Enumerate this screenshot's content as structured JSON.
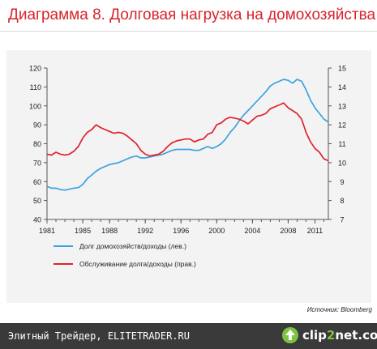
{
  "title": "Диаграмма 8. Долговая нагрузка на домохозяйства",
  "source": "Источник: Bloomberg",
  "footer": {
    "site_text": "Элитный Трейдер, ELITETRADER.RU",
    "logo_prefix": "clip",
    "logo_digit": "2",
    "logo_suffix": "net.com"
  },
  "colors": {
    "title": "#d8232a",
    "series_left": "#3ba3e0",
    "series_right": "#e0222c"
  },
  "chart_data": {
    "type": "line",
    "title": "",
    "x_ticks": [
      "1981",
      "1985",
      "1988",
      "1992",
      "1996",
      "2000",
      "2004",
      "2008",
      "2011"
    ],
    "x_range": [
      1981,
      2012.5
    ],
    "y_left": {
      "range": [
        40,
        120
      ],
      "ticks": [
        "40",
        "50",
        "60",
        "70",
        "80",
        "90",
        "100",
        "110",
        "120"
      ]
    },
    "y_right": {
      "range": [
        7,
        15
      ],
      "ticks": [
        "7",
        "8",
        "9",
        "10",
        "11",
        "12",
        "13",
        "14",
        "15"
      ]
    },
    "grid": false,
    "legend_position": "bottom",
    "series": [
      {
        "name": "Долг домохозяйств/доходы (лев.)",
        "axis": "left",
        "color": "#3ba3e0",
        "points": [
          [
            1981.0,
            57.5
          ],
          [
            1981.5,
            56.5
          ],
          [
            1982.0,
            56.5
          ],
          [
            1982.5,
            55.8
          ],
          [
            1983.0,
            55.5
          ],
          [
            1983.5,
            56.0
          ],
          [
            1984.0,
            56.5
          ],
          [
            1984.5,
            56.8
          ],
          [
            1985.0,
            58.5
          ],
          [
            1985.5,
            61.5
          ],
          [
            1986.0,
            63.5
          ],
          [
            1986.5,
            65.5
          ],
          [
            1987.0,
            67.0
          ],
          [
            1987.5,
            68.0
          ],
          [
            1988.0,
            69.0
          ],
          [
            1988.5,
            69.5
          ],
          [
            1989.0,
            70.0
          ],
          [
            1989.5,
            71.0
          ],
          [
            1990.0,
            72.0
          ],
          [
            1990.5,
            73.0
          ],
          [
            1991.0,
            73.5
          ],
          [
            1991.5,
            72.5
          ],
          [
            1992.0,
            72.5
          ],
          [
            1992.5,
            73.0
          ],
          [
            1993.0,
            73.5
          ],
          [
            1993.5,
            74.0
          ],
          [
            1994.0,
            74.5
          ],
          [
            1994.5,
            75.5
          ],
          [
            1995.0,
            76.5
          ],
          [
            1995.5,
            77.0
          ],
          [
            1996.0,
            77.0
          ],
          [
            1996.5,
            77.0
          ],
          [
            1997.0,
            77.0
          ],
          [
            1997.5,
            76.5
          ],
          [
            1998.0,
            76.5
          ],
          [
            1998.5,
            77.5
          ],
          [
            1999.0,
            78.5
          ],
          [
            1999.5,
            77.5
          ],
          [
            2000.0,
            78.5
          ],
          [
            2000.5,
            80.0
          ],
          [
            2001.0,
            82.5
          ],
          [
            2001.5,
            86.0
          ],
          [
            2002.0,
            88.5
          ],
          [
            2002.5,
            92.0
          ],
          [
            2003.0,
            95.0
          ],
          [
            2003.5,
            97.5
          ],
          [
            2004.0,
            100.0
          ],
          [
            2004.5,
            102.5
          ],
          [
            2005.0,
            105.0
          ],
          [
            2005.5,
            107.5
          ],
          [
            2006.0,
            110.5
          ],
          [
            2006.5,
            112.0
          ],
          [
            2007.0,
            113.0
          ],
          [
            2007.5,
            114.0
          ],
          [
            2008.0,
            113.5
          ],
          [
            2008.5,
            112.0
          ],
          [
            2009.0,
            114.0
          ],
          [
            2009.5,
            113.0
          ],
          [
            2010.0,
            108.5
          ],
          [
            2010.5,
            103.0
          ],
          [
            2011.0,
            99.0
          ],
          [
            2011.5,
            96.0
          ],
          [
            2012.0,
            93.0
          ],
          [
            2012.5,
            91.5
          ]
        ]
      },
      {
        "name": "Обслуживание долга/доходы (прав.)",
        "axis": "right",
        "color": "#e0222c",
        "points": [
          [
            1981.0,
            10.45
          ],
          [
            1981.5,
            10.4
          ],
          [
            1982.0,
            10.55
          ],
          [
            1982.5,
            10.45
          ],
          [
            1983.0,
            10.4
          ],
          [
            1983.5,
            10.45
          ],
          [
            1984.0,
            10.6
          ],
          [
            1984.5,
            10.85
          ],
          [
            1985.0,
            11.3
          ],
          [
            1985.5,
            11.6
          ],
          [
            1986.0,
            11.75
          ],
          [
            1986.5,
            12.0
          ],
          [
            1987.0,
            11.85
          ],
          [
            1987.5,
            11.75
          ],
          [
            1988.0,
            11.65
          ],
          [
            1988.5,
            11.55
          ],
          [
            1989.0,
            11.6
          ],
          [
            1989.5,
            11.55
          ],
          [
            1990.0,
            11.4
          ],
          [
            1990.5,
            11.2
          ],
          [
            1991.0,
            11.0
          ],
          [
            1991.5,
            10.65
          ],
          [
            1992.0,
            10.45
          ],
          [
            1992.5,
            10.35
          ],
          [
            1993.0,
            10.4
          ],
          [
            1993.5,
            10.45
          ],
          [
            1994.0,
            10.6
          ],
          [
            1994.5,
            10.85
          ],
          [
            1995.0,
            11.05
          ],
          [
            1995.5,
            11.15
          ],
          [
            1996.0,
            11.2
          ],
          [
            1996.5,
            11.25
          ],
          [
            1997.0,
            11.25
          ],
          [
            1997.5,
            11.1
          ],
          [
            1998.0,
            11.2
          ],
          [
            1998.5,
            11.25
          ],
          [
            1999.0,
            11.5
          ],
          [
            1999.5,
            11.6
          ],
          [
            2000.0,
            12.0
          ],
          [
            2000.5,
            12.1
          ],
          [
            2001.0,
            12.3
          ],
          [
            2001.5,
            12.4
          ],
          [
            2002.0,
            12.35
          ],
          [
            2002.5,
            12.3
          ],
          [
            2003.0,
            12.2
          ],
          [
            2003.5,
            12.05
          ],
          [
            2004.0,
            12.25
          ],
          [
            2004.5,
            12.45
          ],
          [
            2005.0,
            12.5
          ],
          [
            2005.5,
            12.6
          ],
          [
            2006.0,
            12.85
          ],
          [
            2006.5,
            12.95
          ],
          [
            2007.0,
            13.05
          ],
          [
            2007.5,
            13.15
          ],
          [
            2008.0,
            12.9
          ],
          [
            2008.5,
            12.75
          ],
          [
            2009.0,
            12.6
          ],
          [
            2009.5,
            12.3
          ],
          [
            2010.0,
            11.6
          ],
          [
            2010.5,
            11.1
          ],
          [
            2011.0,
            10.75
          ],
          [
            2011.5,
            10.55
          ],
          [
            2012.0,
            10.2
          ],
          [
            2012.5,
            10.1
          ]
        ]
      }
    ]
  }
}
